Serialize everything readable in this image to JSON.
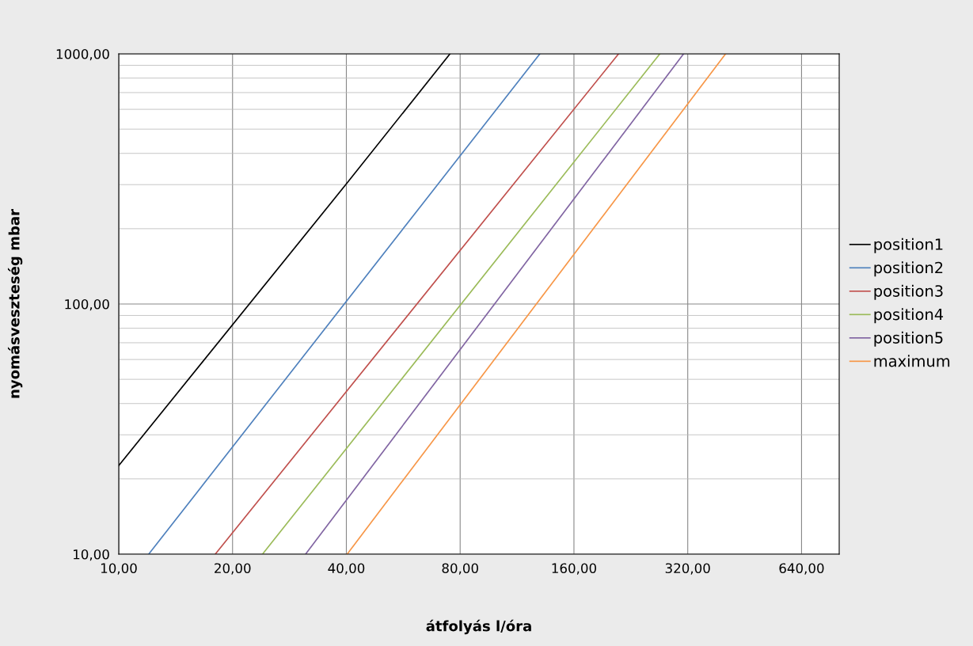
{
  "chart_data": {
    "type": "line",
    "xlabel": "átfolyás l/óra",
    "ylabel": "nyomásveszteség mbar",
    "log": "xy",
    "grid": true,
    "legend": "right",
    "marker": "none",
    "line_style": "solid",
    "xlim": [
      10,
      805
    ],
    "ylim": [
      10,
      1000
    ],
    "xticks": [
      {
        "value": 10,
        "label": "10,00"
      },
      {
        "value": 20,
        "label": "20,00"
      },
      {
        "value": 40,
        "label": "40,00"
      },
      {
        "value": 80,
        "label": "80,00"
      },
      {
        "value": 160,
        "label": "160,00"
      },
      {
        "value": 320,
        "label": "320,00"
      },
      {
        "value": 640,
        "label": "640,00"
      }
    ],
    "yticks": [
      {
        "value": 10,
        "label": "10,00"
      },
      {
        "value": 100,
        "label": "100,00"
      },
      {
        "value": 1000,
        "label": "1000,00"
      }
    ],
    "series": [
      {
        "name": "position1",
        "color": "#000000",
        "x": [
          10,
          40,
          75.2
        ],
        "values": [
          22.6,
          302,
          1000
        ]
      },
      {
        "name": "position2",
        "color": "#4f81bd",
        "x": [
          12.0,
          130
        ],
        "values": [
          10,
          1000
        ]
      },
      {
        "name": "position3",
        "color": "#c0504d",
        "x": [
          18.0,
          210
        ],
        "values": [
          10,
          1000
        ]
      },
      {
        "name": "position4",
        "color": "#9bbb59",
        "x": [
          24.0,
          270
        ],
        "values": [
          10,
          1000
        ]
      },
      {
        "name": "position5",
        "color": "#8064a2",
        "x": [
          31.2,
          312
        ],
        "values": [
          10,
          1000
        ]
      },
      {
        "name": "maximum",
        "color": "#f79646",
        "x": [
          40.2,
          403
        ],
        "values": [
          10,
          1000
        ]
      }
    ]
  }
}
